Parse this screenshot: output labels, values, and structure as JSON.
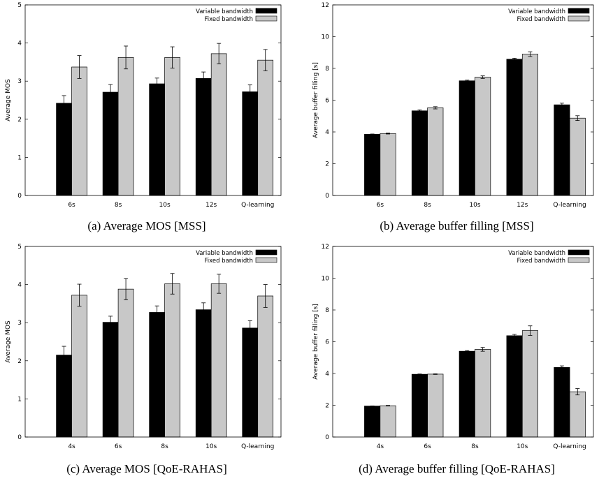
{
  "legend": {
    "variable": "Variable bandwidth",
    "fixed": "Fixed bandwidth"
  },
  "colors": {
    "variable": "#000000",
    "fixed": "#c8c8c8"
  },
  "captions": [
    "(a) Average MOS [MSS]",
    "(b) Average buffer filling [MSS]",
    "(c) Average MOS [QoE-RAHAS]",
    "(d) Average buffer filling [QoE-RAHAS]"
  ],
  "chart_data": [
    {
      "type": "bar",
      "ylabel": "Average MOS",
      "xlabel": "",
      "ylim": [
        0,
        5
      ],
      "yticks": [
        0,
        1,
        2,
        3,
        4,
        5
      ],
      "categories": [
        "6s",
        "8s",
        "10s",
        "12s",
        "Q-learning"
      ],
      "series": [
        {
          "name": "Variable bandwidth",
          "values": [
            2.42,
            2.71,
            2.93,
            3.07,
            2.72
          ],
          "errors": [
            0.2,
            0.2,
            0.15,
            0.17,
            0.18
          ]
        },
        {
          "name": "Fixed bandwidth",
          "values": [
            3.37,
            3.62,
            3.62,
            3.72,
            3.55
          ],
          "errors": [
            0.3,
            0.3,
            0.28,
            0.27,
            0.28
          ]
        }
      ]
    },
    {
      "type": "bar",
      "ylabel": "Average buffer filling [s]",
      "xlabel": "",
      "ylim": [
        0,
        12
      ],
      "yticks": [
        0,
        2,
        4,
        6,
        8,
        10,
        12
      ],
      "categories": [
        "6s",
        "8s",
        "10s",
        "12s",
        "Q-learning"
      ],
      "series": [
        {
          "name": "Variable bandwidth",
          "values": [
            3.85,
            5.33,
            7.22,
            8.58,
            5.71
          ],
          "errors": [
            0.02,
            0.06,
            0.04,
            0.06,
            0.1
          ]
        },
        {
          "name": "Fixed bandwidth",
          "values": [
            3.9,
            5.52,
            7.45,
            8.9,
            4.87
          ],
          "errors": [
            0.03,
            0.07,
            0.08,
            0.15,
            0.15
          ]
        }
      ]
    },
    {
      "type": "bar",
      "ylabel": "Average MOS",
      "xlabel": "",
      "ylim": [
        0,
        5
      ],
      "yticks": [
        0,
        1,
        2,
        3,
        4,
        5
      ],
      "categories": [
        "4s",
        "6s",
        "8s",
        "10s",
        "Q-learning"
      ],
      "series": [
        {
          "name": "Variable bandwidth",
          "values": [
            2.15,
            3.01,
            3.27,
            3.34,
            2.86
          ],
          "errors": [
            0.23,
            0.16,
            0.17,
            0.18,
            0.19
          ]
        },
        {
          "name": "Fixed bandwidth",
          "values": [
            3.72,
            3.88,
            4.02,
            4.02,
            3.7
          ],
          "errors": [
            0.29,
            0.28,
            0.27,
            0.25,
            0.3
          ]
        }
      ]
    },
    {
      "type": "bar",
      "ylabel": "Average buffer filling [s]",
      "xlabel": "",
      "ylim": [
        0,
        12
      ],
      "yticks": [
        0,
        2,
        4,
        6,
        8,
        10,
        12
      ],
      "categories": [
        "4s",
        "6s",
        "8s",
        "10s",
        "Q-learning"
      ],
      "series": [
        {
          "name": "Variable bandwidth",
          "values": [
            1.95,
            3.95,
            5.4,
            6.38,
            4.38
          ],
          "errors": [
            0.01,
            0.02,
            0.04,
            0.08,
            0.1
          ]
        },
        {
          "name": "Fixed bandwidth",
          "values": [
            1.97,
            3.96,
            5.52,
            6.7,
            2.85
          ],
          "errors": [
            0.02,
            0.02,
            0.12,
            0.3,
            0.2
          ]
        }
      ]
    }
  ]
}
